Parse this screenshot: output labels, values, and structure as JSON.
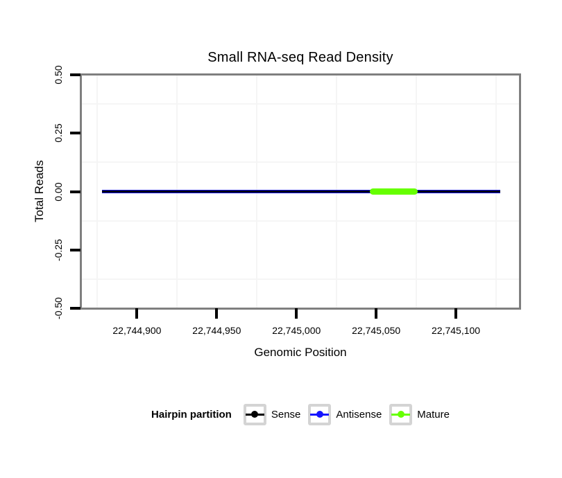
{
  "chart_data": {
    "type": "line",
    "title": "Small RNA-seq Read Density",
    "xlabel": "Genomic Position",
    "ylabel": "Total Reads",
    "xlim": [
      22744865,
      22745140
    ],
    "ylim": [
      -0.5,
      0.5
    ],
    "grid": "minor-gridlines-only",
    "panel_border_color": "#7f7f7f",
    "minor_grid_color": "#f5f5f5",
    "x_ticks": [
      {
        "value": 22744900,
        "label": "22,744,900"
      },
      {
        "value": 22744950,
        "label": "22,744,950"
      },
      {
        "value": 22745000,
        "label": "22,745,000"
      },
      {
        "value": 22745050,
        "label": "22,745,050"
      },
      {
        "value": 22745100,
        "label": "22,745,100"
      }
    ],
    "y_ticks": [
      {
        "value": 0.5,
        "label": "0.50"
      },
      {
        "value": 0.25,
        "label": "0.25"
      },
      {
        "value": 0,
        "label": "0.00"
      },
      {
        "value": -0.25,
        "label": "-0.25"
      },
      {
        "value": -0.5,
        "label": "-0.50"
      }
    ],
    "x_minor_gridlines": [
      22744875,
      22744925,
      22744975,
      22745025,
      22745075,
      22745125
    ],
    "y_minor_gridlines": [
      0.375,
      0.125,
      -0.125,
      -0.375
    ],
    "series": [
      {
        "name": "Sense",
        "color": "#000000",
        "y": 0,
        "x_start": 22744878,
        "x_end": 22745128,
        "total_reads": 0
      },
      {
        "name": "Antisense",
        "color": "#1515ff",
        "y": 0,
        "x_start": 22744878,
        "x_end": 22745128,
        "total_reads": 0
      },
      {
        "name": "Mature",
        "color": "#66ff00",
        "y": 0,
        "x_start": 22745046,
        "x_end": 22745076,
        "total_reads": 0
      }
    ],
    "legend": {
      "title": "Hairpin partition",
      "position": "bottom",
      "items": [
        {
          "label": "Sense",
          "color": "#000000"
        },
        {
          "label": "Antisense",
          "color": "#1515ff"
        },
        {
          "label": "Mature",
          "color": "#66ff00"
        }
      ]
    }
  }
}
